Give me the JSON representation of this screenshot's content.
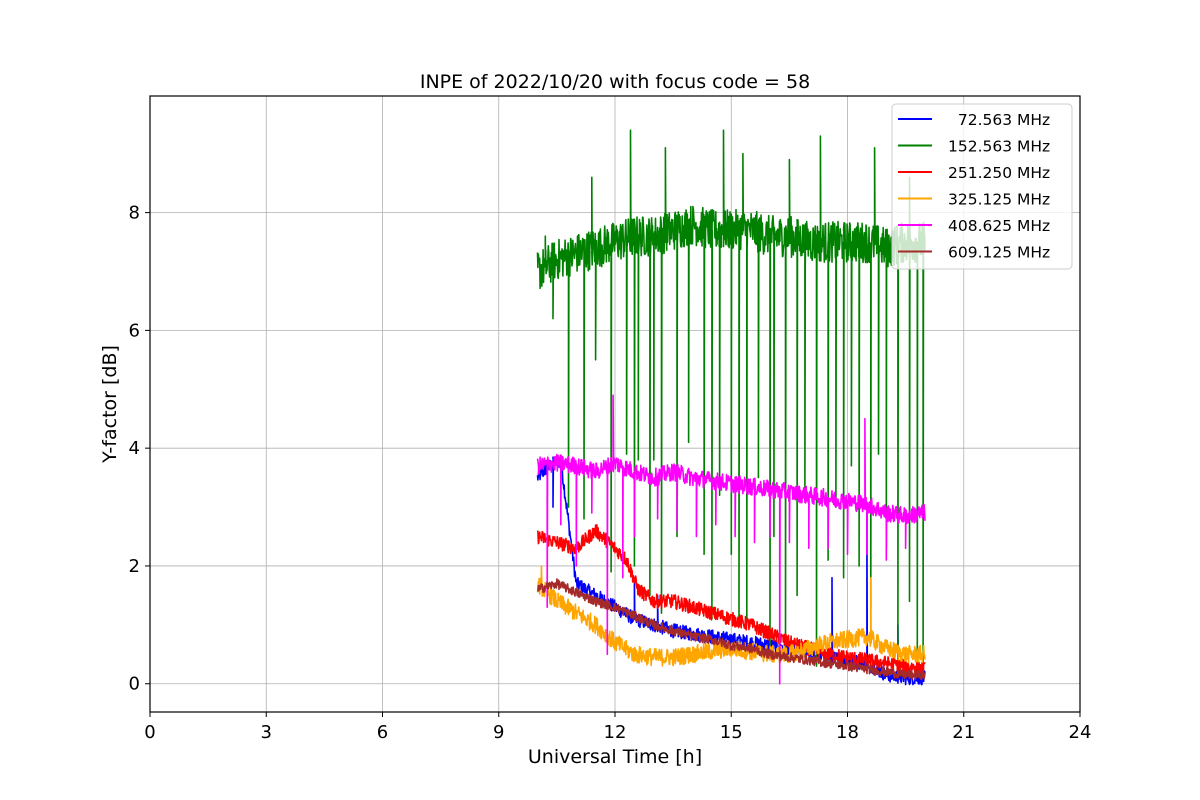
{
  "chart_data": {
    "type": "line",
    "title": "INPE of 2022/10/20 with focus code = 58",
    "xlabel": "Universal Time [h]",
    "ylabel": "Y-factor [dB]",
    "xlim": [
      0,
      24
    ],
    "ylim": [
      -0.48,
      9.98
    ],
    "xticks": [
      0,
      3,
      6,
      9,
      12,
      15,
      18,
      21,
      24
    ],
    "yticks": [
      0,
      2,
      4,
      6,
      8
    ],
    "grid": true,
    "legend_position": "upper right",
    "series": [
      {
        "name": "  72.563 MHz",
        "color": "#0000ff",
        "x": [
          10.0,
          10.3,
          10.6,
          11.0,
          11.5,
          12.0,
          12.5,
          13.0,
          13.5,
          14.0,
          14.5,
          15.0,
          15.5,
          16.0,
          16.5,
          17.0,
          17.5,
          18.0,
          18.5,
          19.0,
          19.5,
          20.0
        ],
        "y": [
          3.5,
          3.7,
          3.8,
          1.7,
          1.5,
          1.3,
          1.1,
          1.0,
          0.9,
          0.85,
          0.8,
          0.75,
          0.7,
          0.65,
          0.6,
          0.55,
          0.45,
          0.4,
          0.35,
          0.15,
          0.1,
          0.1
        ],
        "spikes": [
          [
            10.4,
            3.0
          ],
          [
            12.5,
            1.8
          ],
          [
            13.1,
            1.5
          ],
          [
            17.6,
            1.8
          ],
          [
            18.5,
            2.9
          ],
          [
            19.3,
            1.0
          ]
        ]
      },
      {
        "name": "152.563 MHz",
        "color": "#008000",
        "x": [
          10.0,
          10.5,
          11.0,
          11.5,
          12.0,
          12.5,
          13.0,
          13.5,
          14.0,
          14.5,
          15.0,
          15.5,
          16.0,
          16.5,
          17.0,
          17.5,
          18.0,
          18.5,
          19.0,
          19.5,
          20.0
        ],
        "y": [
          7.0,
          7.2,
          7.3,
          7.4,
          7.5,
          7.6,
          7.6,
          7.7,
          7.8,
          7.7,
          7.7,
          7.7,
          7.6,
          7.6,
          7.5,
          7.5,
          7.5,
          7.5,
          7.4,
          7.5,
          7.5
        ],
        "dips": [
          [
            10.4,
            6.2
          ],
          [
            10.8,
            3.0
          ],
          [
            11.2,
            2.8
          ],
          [
            11.5,
            5.5
          ],
          [
            11.9,
            1.9
          ],
          [
            12.3,
            3.9
          ],
          [
            12.5,
            2.0
          ],
          [
            12.6,
            3.8
          ],
          [
            12.9,
            1.5
          ],
          [
            13.0,
            3.8
          ],
          [
            13.2,
            1.2
          ],
          [
            13.6,
            2.5
          ],
          [
            13.9,
            4.1
          ],
          [
            14.3,
            2.2
          ],
          [
            14.5,
            1.1
          ],
          [
            14.7,
            3.2
          ],
          [
            15.0,
            2.2
          ],
          [
            15.2,
            1.0
          ],
          [
            15.4,
            1.1
          ],
          [
            15.7,
            3.5
          ],
          [
            16.0,
            0.5
          ],
          [
            16.1,
            2.5
          ],
          [
            16.4,
            0.4
          ],
          [
            16.7,
            1.5
          ],
          [
            16.9,
            3.3
          ],
          [
            17.2,
            0.3
          ],
          [
            17.5,
            2.1
          ],
          [
            17.7,
            3.0
          ],
          [
            17.9,
            1.8
          ],
          [
            18.1,
            3.7
          ],
          [
            18.3,
            2.0
          ],
          [
            18.6,
            1.3
          ],
          [
            18.8,
            3.9
          ],
          [
            19.0,
            2.3
          ],
          [
            19.3,
            0.6
          ],
          [
            19.6,
            1.4
          ],
          [
            19.8,
            0.5
          ],
          [
            19.95,
            0.3
          ]
        ],
        "peaks": [
          [
            10.2,
            7.6
          ],
          [
            11.4,
            8.6
          ],
          [
            12.4,
            9.4
          ],
          [
            13.3,
            9.1
          ],
          [
            14.8,
            9.4
          ],
          [
            15.3,
            9.0
          ],
          [
            16.5,
            8.9
          ],
          [
            17.3,
            9.3
          ],
          [
            18.7,
            9.1
          ],
          [
            19.6,
            8.6
          ]
        ]
      },
      {
        "name": "251.250 MHz",
        "color": "#ff0000",
        "x": [
          10.0,
          10.5,
          11.0,
          11.5,
          12.0,
          12.3,
          12.6,
          13.0,
          13.5,
          14.0,
          14.5,
          15.0,
          15.5,
          16.0,
          16.5,
          17.0,
          17.5,
          18.0,
          18.5,
          19.0,
          19.5,
          20.0
        ],
        "y": [
          2.5,
          2.4,
          2.3,
          2.6,
          2.3,
          2.1,
          1.6,
          1.4,
          1.4,
          1.3,
          1.2,
          1.1,
          1.0,
          0.85,
          0.7,
          0.6,
          0.5,
          0.45,
          0.4,
          0.35,
          0.3,
          0.25
        ]
      },
      {
        "name": "325.125 MHz",
        "color": "#ffa500",
        "x": [
          10.0,
          10.5,
          11.0,
          11.5,
          12.0,
          12.5,
          13.0,
          13.5,
          14.0,
          14.5,
          15.0,
          15.5,
          16.0,
          16.5,
          17.0,
          17.5,
          18.0,
          18.5,
          19.0,
          19.5,
          20.0
        ],
        "y": [
          1.7,
          1.4,
          1.2,
          1.0,
          0.7,
          0.5,
          0.45,
          0.45,
          0.5,
          0.55,
          0.6,
          0.55,
          0.5,
          0.5,
          0.6,
          0.7,
          0.75,
          0.8,
          0.6,
          0.5,
          0.5
        ],
        "spikes": [
          [
            10.1,
            2.0
          ],
          [
            18.6,
            1.8
          ]
        ]
      },
      {
        "name": "408.625 MHz",
        "color": "#ff00ff",
        "x": [
          10.0,
          10.5,
          11.0,
          11.5,
          12.0,
          12.5,
          13.0,
          13.5,
          14.0,
          14.5,
          15.0,
          15.5,
          16.0,
          16.5,
          17.0,
          17.5,
          18.0,
          18.5,
          19.0,
          19.5,
          20.0
        ],
        "y": [
          3.7,
          3.75,
          3.7,
          3.6,
          3.75,
          3.6,
          3.5,
          3.6,
          3.5,
          3.45,
          3.4,
          3.35,
          3.3,
          3.25,
          3.2,
          3.15,
          3.1,
          3.05,
          2.9,
          2.85,
          2.9
        ],
        "dips": [
          [
            10.25,
            1.3
          ],
          [
            10.6,
            2.7
          ],
          [
            11.0,
            2.0
          ],
          [
            11.4,
            2.9
          ],
          [
            11.8,
            0.5
          ],
          [
            12.2,
            1.8
          ],
          [
            12.5,
            2.5
          ],
          [
            13.1,
            2.8
          ],
          [
            13.6,
            2.6
          ],
          [
            14.1,
            2.5
          ],
          [
            14.6,
            2.7
          ],
          [
            15.1,
            2.5
          ],
          [
            15.6,
            2.4
          ],
          [
            16.0,
            2.5
          ],
          [
            16.25,
            0.0
          ],
          [
            16.5,
            2.4
          ],
          [
            17.0,
            2.3
          ],
          [
            17.5,
            2.3
          ],
          [
            18.0,
            2.2
          ],
          [
            18.5,
            2.2
          ],
          [
            19.0,
            2.1
          ],
          [
            19.5,
            2.3
          ]
        ],
        "peaks": [
          [
            11.95,
            4.9
          ],
          [
            18.45,
            4.5
          ]
        ]
      },
      {
        "name": "609.125 MHz",
        "color": "#a52a2a",
        "x": [
          10.0,
          10.5,
          11.0,
          11.5,
          12.0,
          12.5,
          13.0,
          13.5,
          14.0,
          14.5,
          15.0,
          15.5,
          16.0,
          16.5,
          17.0,
          17.5,
          18.0,
          18.5,
          19.0,
          19.5,
          20.0
        ],
        "y": [
          1.6,
          1.7,
          1.55,
          1.4,
          1.3,
          1.15,
          1.0,
          0.9,
          0.8,
          0.75,
          0.65,
          0.6,
          0.5,
          0.45,
          0.4,
          0.35,
          0.3,
          0.25,
          0.2,
          0.15,
          0.15
        ]
      }
    ]
  }
}
